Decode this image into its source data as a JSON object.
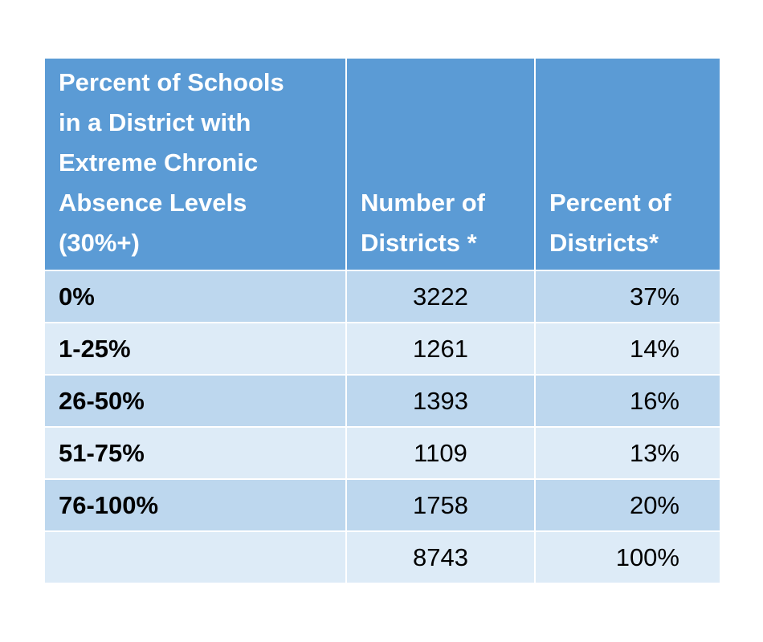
{
  "chart_data": {
    "type": "table",
    "columns": [
      "Percent of Schools in a District with Extreme Chronic Absence Levels (30%+)",
      "Number of Districts *",
      "Percent of Districts*"
    ],
    "header_lines": {
      "col1": [
        "Percent of Schools",
        "in a District with",
        "Extreme Chronic",
        "Absence Levels",
        "(30%+)"
      ],
      "col2": [
        "Number of",
        "Districts *"
      ],
      "col3": [
        "Percent of",
        "Districts*"
      ]
    },
    "rows": [
      {
        "range": "0%",
        "count": "3222",
        "percent": "37%"
      },
      {
        "range": "1-25%",
        "count": "1261",
        "percent": "14%"
      },
      {
        "range": "26-50%",
        "count": "1393",
        "percent": "16%"
      },
      {
        "range": "51-75%",
        "count": "1109",
        "percent": "13%"
      },
      {
        "range": "76-100%",
        "count": "1758",
        "percent": "20%"
      },
      {
        "range": "",
        "count": "8743",
        "percent": "100%"
      }
    ],
    "colors": {
      "header_bg": "#5b9bd5",
      "band_dark": "#bdd7ee",
      "band_light": "#ddebf7",
      "header_text": "#ffffff",
      "body_text": "#000000"
    }
  }
}
